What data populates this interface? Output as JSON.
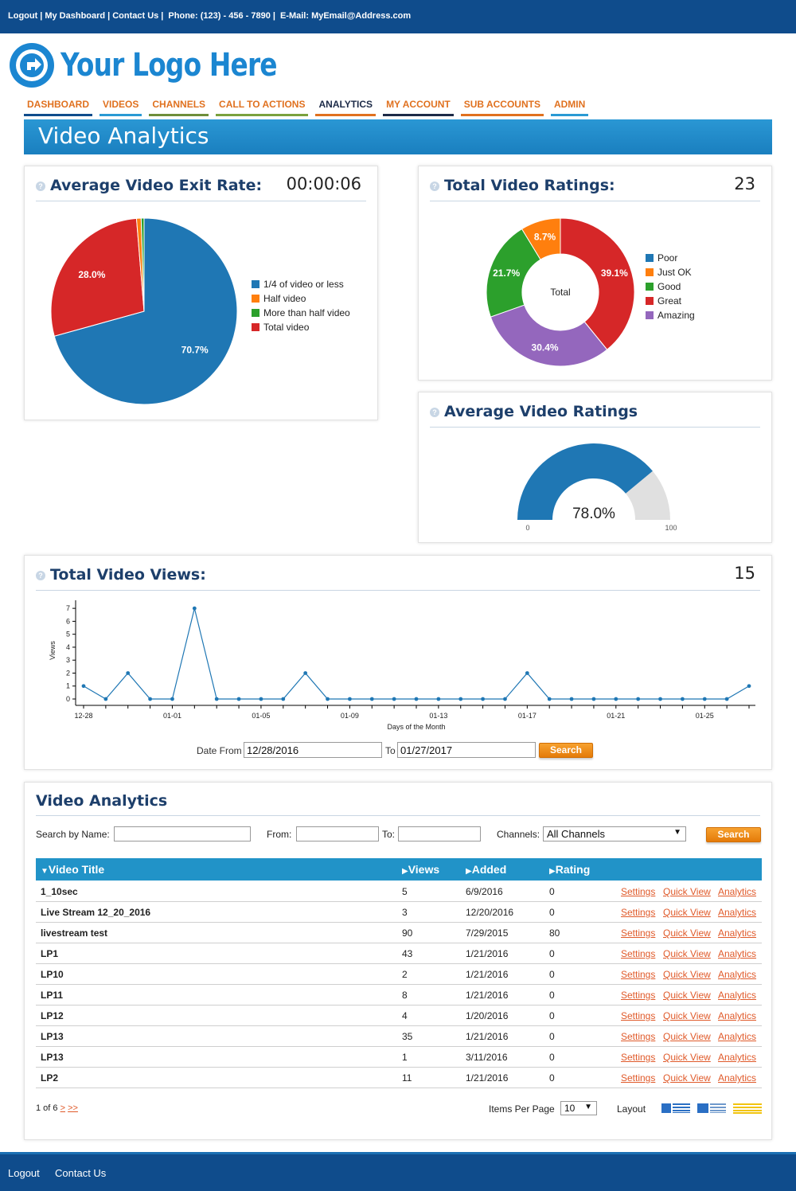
{
  "topbar": {
    "logout": "Logout",
    "dashboard": "My Dashboard",
    "contact": "Contact Us",
    "phone": "Phone: (123) - 456 - 7890",
    "email": "E-Mail: MyEmail@Address.com"
  },
  "logo": {
    "text": "Your Logo Here"
  },
  "nav": {
    "tabs": [
      {
        "label": "DASHBOARD",
        "color": "#0f4c8c"
      },
      {
        "label": "VIDEOS",
        "color": "#2a9ad4"
      },
      {
        "label": "CHANNELS",
        "color": "#6e8e3a"
      },
      {
        "label": "CALL TO ACTIONS",
        "color": "#7aa13d"
      },
      {
        "label": "ANALYTICS",
        "color": "#e0711f",
        "active": true
      },
      {
        "label": "MY ACCOUNT",
        "color": "#1d2b48"
      },
      {
        "label": "SUB ACCOUNTS",
        "color": "#e0711f"
      },
      {
        "label": "ADMIN",
        "color": "#2a9ad4"
      }
    ]
  },
  "page": {
    "title": "Video Analytics"
  },
  "exit_rate": {
    "title": "Average Video Exit Rate:",
    "value": "00:00:06",
    "help": "?"
  },
  "ratings_total": {
    "title": "Total Video Ratings:",
    "value": "23",
    "help": "?",
    "center_label": "Total"
  },
  "avg_ratings": {
    "title": "Average Video Ratings",
    "help": "?",
    "min_label": "0",
    "max_label": "100",
    "value_label": "78.0%"
  },
  "views": {
    "title": "Total Video Views:",
    "value": "15",
    "help": "?",
    "date_from_label": "Date From",
    "date_from": "12/28/2016",
    "to_label": "To",
    "date_to": "01/27/2017",
    "search_label": "Search"
  },
  "chart_data": [
    {
      "type": "pie",
      "categories": [
        "1/4 of video or less",
        "Half video",
        "More than half video",
        "Total video"
      ],
      "values": [
        70.7,
        0.8,
        0.5,
        28.0
      ],
      "labels": [
        "70.7%",
        "",
        "",
        "28.0%"
      ],
      "colors": [
        "#1f77b4",
        "#ff7f0e",
        "#2ca02c",
        "#d62728"
      ],
      "legend": "right"
    },
    {
      "type": "pie",
      "donut": true,
      "categories": [
        "Poor",
        "Just OK",
        "Good",
        "Great",
        "Amazing"
      ],
      "values": [
        0,
        8.7,
        21.7,
        39.1,
        30.4
      ],
      "labels": [
        "",
        "8.7%",
        "21.7%",
        "39.1%",
        "30.4%"
      ],
      "colors": [
        "#1f77b4",
        "#ff7f0e",
        "#2ca02c",
        "#d62728",
        "#9467bd"
      ],
      "legend": "right"
    },
    {
      "type": "gauge",
      "value": 78.0,
      "min": 0,
      "max": 100,
      "colors": [
        "#1f77b4",
        "#e0e0e0"
      ]
    },
    {
      "type": "line",
      "xlabel": "Days of the Month",
      "ylabel": "Views",
      "ylim": [
        0,
        7.5
      ],
      "yticks": [
        0,
        1,
        2,
        3,
        4,
        5,
        6,
        7
      ],
      "x": [
        "12-28",
        "12-29",
        "12-30",
        "12-31",
        "01-01",
        "01-02",
        "01-03",
        "01-04",
        "01-05",
        "01-06",
        "01-07",
        "01-08",
        "01-09",
        "01-10",
        "01-11",
        "01-12",
        "01-13",
        "01-14",
        "01-15",
        "01-16",
        "01-17",
        "01-18",
        "01-19",
        "01-20",
        "01-21",
        "01-22",
        "01-23",
        "01-24",
        "01-25",
        "01-26",
        "01-27"
      ],
      "xtick_labels": [
        "12-28",
        "01-01",
        "01-05",
        "01-09",
        "01-13",
        "01-17",
        "01-21",
        "01-25"
      ],
      "series": [
        {
          "values": [
            1,
            0,
            2,
            0,
            0,
            7,
            0,
            0,
            0,
            0,
            2,
            0,
            0,
            0,
            0,
            0,
            0,
            0,
            0,
            0,
            2,
            0,
            0,
            0,
            0,
            0,
            0,
            0,
            0,
            0,
            1
          ],
          "color": "#1f77b4"
        }
      ]
    }
  ],
  "table_section": {
    "title": "Video Analytics",
    "search_name_label": "Search by Name:",
    "search_name_value": "",
    "from_label": "From:",
    "from_value": "",
    "to_label": "To:",
    "to_value": "",
    "channels_label": "Channels:",
    "channels_selected": "All Channels",
    "search_label": "Search",
    "columns": [
      "Video Title",
      "Views",
      "Added",
      "Rating"
    ],
    "rows": [
      {
        "title": "1_10sec",
        "views": "5",
        "added": "6/9/2016",
        "rating": "0"
      },
      {
        "title": "Live Stream 12_20_2016",
        "views": "3",
        "added": "12/20/2016",
        "rating": "0"
      },
      {
        "title": "livestream test",
        "views": "90",
        "added": "7/29/2015",
        "rating": "80"
      },
      {
        "title": "LP1",
        "views": "43",
        "added": "1/21/2016",
        "rating": "0"
      },
      {
        "title": "LP10",
        "views": "2",
        "added": "1/21/2016",
        "rating": "0"
      },
      {
        "title": "LP11",
        "views": "8",
        "added": "1/21/2016",
        "rating": "0"
      },
      {
        "title": "LP12",
        "views": "4",
        "added": "1/20/2016",
        "rating": "0"
      },
      {
        "title": "LP13",
        "views": "35",
        "added": "1/21/2016",
        "rating": "0"
      },
      {
        "title": "LP13",
        "views": "1",
        "added": "3/11/2016",
        "rating": "0"
      },
      {
        "title": "LP2",
        "views": "11",
        "added": "1/21/2016",
        "rating": "0"
      }
    ],
    "row_actions": [
      "Settings",
      "Quick View",
      "Analytics"
    ],
    "pager_text": "1 of 6",
    "pager_next": ">",
    "pager_last": ">>",
    "items_per_page_label": "Items Per Page",
    "items_per_page": "10",
    "layout_label": "Layout"
  },
  "footer": {
    "logout": "Logout",
    "contact": "Contact Us"
  }
}
